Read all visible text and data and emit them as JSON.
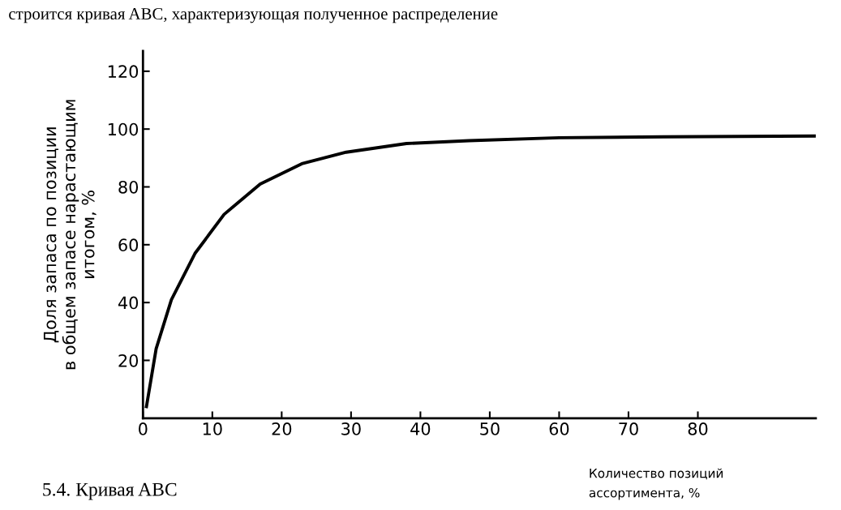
{
  "chart_data": {
    "type": "line",
    "xlabel": "Количество позиций\nассортимента, %",
    "ylabel": "Доля запаса по позиции\nв общем запасе нарастающим\nитогом, %",
    "annotations": [
      "строится кривая ABC, характеризующая полученное распределение",
      "5.4. Кривая ABC"
    ],
    "x": [
      0.5,
      1.9,
      4.1,
      7.5,
      11.7,
      16.9,
      22.9,
      29.3,
      38,
      47,
      60,
      75,
      97
    ],
    "series": [
      {
        "color": "#000000",
        "values": [
          4,
          24,
          41,
          57,
          70.5,
          81,
          88,
          92,
          95,
          96,
          97,
          97.3,
          97.6
        ]
      }
    ],
    "xlim": [
      0,
      97
    ],
    "ylim": [
      0,
      127
    ],
    "xticks": [
      0,
      10,
      20,
      30,
      40,
      50,
      60,
      70,
      80
    ],
    "yticks": [
      20,
      40,
      60,
      80,
      100,
      120
    ],
    "grid": false,
    "legend": false,
    "marker": "none",
    "line_style": "solid"
  }
}
